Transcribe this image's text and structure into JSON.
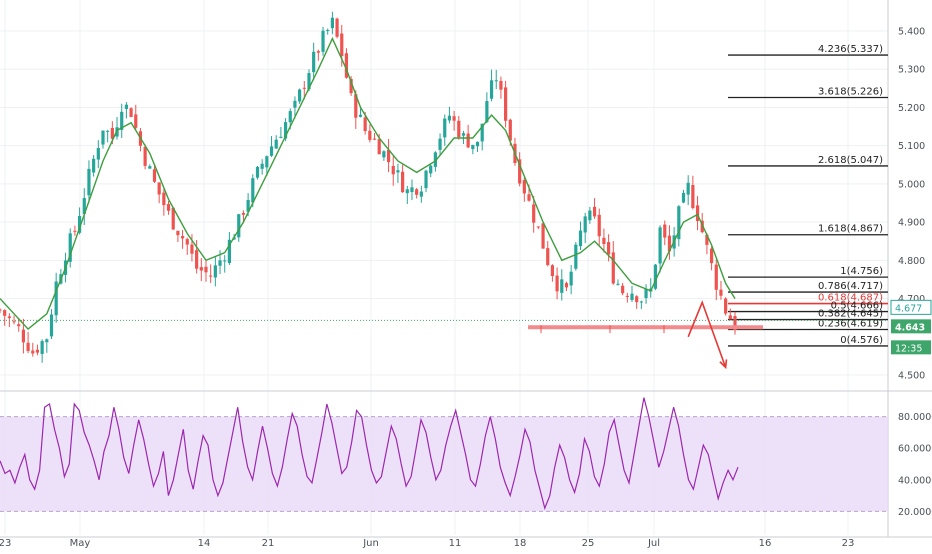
{
  "chart_data": {
    "type": "candlestick",
    "price_axis": {
      "ylim": [
        4.46,
        5.46
      ],
      "ticks": [
        "5.400",
        "5.300",
        "5.200",
        "5.100",
        "5.000",
        "4.900",
        "4.800",
        "4.700",
        "4.500"
      ]
    },
    "time_axis": {
      "ticks": [
        "23",
        "May",
        "14",
        "21",
        "Jun",
        "11",
        "18",
        "25",
        "Jul",
        "16",
        "23"
      ]
    },
    "price_labels": {
      "upper": "4.677",
      "last": "4.643",
      "countdown": "12:35"
    },
    "price_path": [
      [
        0,
        4.67
      ],
      [
        4,
        4.62
      ],
      [
        7,
        4.56
      ],
      [
        10,
        4.6
      ],
      [
        12,
        4.74
      ],
      [
        14,
        4.82
      ],
      [
        16,
        4.88
      ],
      [
        19,
        5.02
      ],
      [
        22,
        5.15
      ],
      [
        24,
        5.12
      ],
      [
        26,
        5.21
      ],
      [
        28,
        5.19
      ],
      [
        30,
        5.1
      ],
      [
        33,
        5.0
      ],
      [
        36,
        4.92
      ],
      [
        40,
        4.84
      ],
      [
        42,
        4.78
      ],
      [
        45,
        4.76
      ],
      [
        48,
        4.82
      ],
      [
        51,
        4.9
      ],
      [
        54,
        5.0
      ],
      [
        57,
        5.08
      ],
      [
        60,
        5.14
      ],
      [
        63,
        5.2
      ],
      [
        66,
        5.3
      ],
      [
        69,
        5.38
      ],
      [
        71,
        5.42
      ],
      [
        73,
        5.34
      ],
      [
        75,
        5.22
      ],
      [
        78,
        5.14
      ],
      [
        81,
        5.1
      ],
      [
        84,
        5.04
      ],
      [
        87,
        4.98
      ],
      [
        90,
        5.0
      ],
      [
        93,
        5.1
      ],
      [
        96,
        5.18
      ],
      [
        99,
        5.12
      ],
      [
        102,
        5.1
      ],
      [
        104,
        5.22
      ],
      [
        106,
        5.28
      ],
      [
        108,
        5.18
      ],
      [
        110,
        5.06
      ],
      [
        113,
        4.95
      ],
      [
        115,
        4.88
      ],
      [
        117,
        4.8
      ],
      [
        119,
        4.74
      ],
      [
        121,
        4.72
      ],
      [
        123,
        4.82
      ],
      [
        125,
        4.92
      ],
      [
        127,
        4.9
      ],
      [
        129,
        4.84
      ],
      [
        131,
        4.76
      ],
      [
        133,
        4.72
      ],
      [
        135,
        4.72
      ],
      [
        137,
        4.7
      ],
      [
        139,
        4.72
      ],
      [
        141,
        4.88
      ],
      [
        143,
        4.82
      ],
      [
        145,
        4.92
      ],
      [
        147,
        4.99
      ],
      [
        149,
        4.92
      ],
      [
        151,
        4.83
      ],
      [
        153,
        4.74
      ],
      [
        155,
        4.67
      ],
      [
        157,
        4.63
      ]
    ],
    "price_low_idx": 155,
    "ma_path": [
      [
        0,
        4.7
      ],
      [
        6,
        4.62
      ],
      [
        10,
        4.66
      ],
      [
        14,
        4.78
      ],
      [
        18,
        4.92
      ],
      [
        22,
        5.06
      ],
      [
        25,
        5.14
      ],
      [
        28,
        5.16
      ],
      [
        32,
        5.08
      ],
      [
        36,
        4.96
      ],
      [
        40,
        4.87
      ],
      [
        44,
        4.8
      ],
      [
        48,
        4.82
      ],
      [
        52,
        4.9
      ],
      [
        56,
        5.0
      ],
      [
        60,
        5.1
      ],
      [
        64,
        5.2
      ],
      [
        68,
        5.3
      ],
      [
        71,
        5.38
      ],
      [
        74,
        5.3
      ],
      [
        77,
        5.2
      ],
      [
        81,
        5.12
      ],
      [
        85,
        5.06
      ],
      [
        89,
        5.03
      ],
      [
        93,
        5.06
      ],
      [
        97,
        5.12
      ],
      [
        101,
        5.12
      ],
      [
        105,
        5.18
      ],
      [
        108,
        5.14
      ],
      [
        112,
        5.02
      ],
      [
        116,
        4.9
      ],
      [
        120,
        4.8
      ],
      [
        124,
        4.82
      ],
      [
        127,
        4.85
      ],
      [
        131,
        4.8
      ],
      [
        135,
        4.74
      ],
      [
        139,
        4.72
      ],
      [
        142,
        4.8
      ],
      [
        146,
        4.9
      ],
      [
        149,
        4.92
      ],
      [
        152,
        4.84
      ],
      [
        155,
        4.74
      ],
      [
        157,
        4.7
      ]
    ],
    "fibonacci": {
      "levels": [
        {
          "label": "4.236(5.337)",
          "value": 5.337
        },
        {
          "label": "3.618(5.226)",
          "value": 5.226
        },
        {
          "label": "2.618(5.047)",
          "value": 5.047
        },
        {
          "label": "1.618(4.867)",
          "value": 4.867
        },
        {
          "label": "1(4.756)",
          "value": 4.756
        },
        {
          "label": "0.786(4.717)",
          "value": 4.717
        },
        {
          "label": "0.618(4.687)",
          "value": 4.687,
          "highlight": true
        },
        {
          "label": "0.5(4.666)",
          "value": 4.666
        },
        {
          "label": "0.382(4.645)",
          "value": 4.645
        },
        {
          "label": "0.236(4.619)",
          "value": 4.619
        },
        {
          "label": "0(4.576)",
          "value": 4.576
        }
      ]
    },
    "support_level": 4.625,
    "last_price_line": 4.643,
    "projection_arrow": [
      [
        147,
        4.6
      ],
      [
        150,
        4.69
      ],
      [
        155,
        4.52
      ]
    ],
    "rsi": {
      "ylim": [
        5,
        95
      ],
      "bands": [
        20,
        80
      ],
      "ticks": [
        "80.0000",
        "60.0000",
        "40.0000",
        "20.0000"
      ],
      "values": [
        52,
        44,
        46,
        38,
        48,
        56,
        40,
        34,
        46,
        86,
        88,
        72,
        60,
        42,
        50,
        88,
        84,
        70,
        62,
        52,
        40,
        58,
        68,
        86,
        72,
        54,
        44,
        62,
        78,
        66,
        50,
        36,
        44,
        58,
        30,
        40,
        56,
        72,
        46,
        34,
        52,
        68,
        62,
        40,
        30,
        38,
        54,
        70,
        86,
        64,
        48,
        40,
        58,
        74,
        60,
        44,
        36,
        48,
        66,
        82,
        74,
        56,
        42,
        38,
        54,
        70,
        88,
        76,
        60,
        44,
        48,
        64,
        84,
        80,
        62,
        46,
        38,
        42,
        58,
        74,
        66,
        50,
        36,
        42,
        60,
        78,
        70,
        54,
        40,
        46,
        62,
        74,
        84,
        70,
        56,
        40,
        36,
        50,
        68,
        80,
        66,
        48,
        38,
        30,
        42,
        56,
        72,
        64,
        46,
        34,
        22,
        30,
        48,
        62,
        54,
        40,
        32,
        44,
        66,
        58,
        42,
        36,
        50,
        70,
        78,
        62,
        46,
        38,
        56,
        74,
        92,
        80,
        64,
        48,
        58,
        72,
        86,
        74,
        56,
        40,
        34,
        48,
        62,
        56,
        42,
        28,
        38,
        46,
        40,
        48
      ]
    },
    "colors": {
      "up": "#26a69a",
      "down": "#ef5350",
      "ma": "#3e9e3e",
      "rsi": "#9c27b0",
      "rsi_band": "#e9d9f7",
      "fib_highlight": "#e53935",
      "support": "#f28b8b",
      "arrow": "#e53935",
      "accent_green": "#3fa66b"
    }
  }
}
